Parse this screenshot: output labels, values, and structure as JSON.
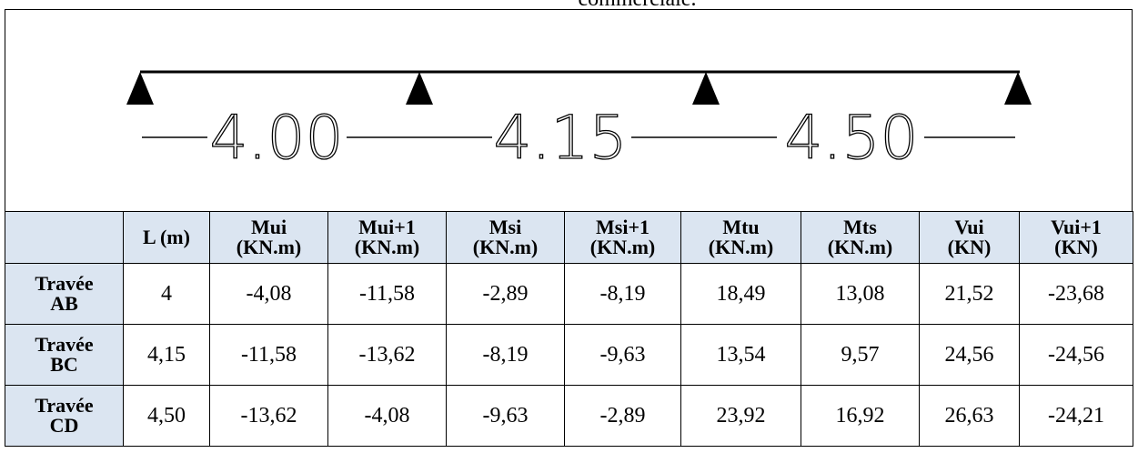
{
  "caption": "commerciale.",
  "diagram": {
    "spans": [
      "4.00",
      "4.15",
      "4.50"
    ]
  },
  "table": {
    "header": [
      [
        ""
      ],
      [
        "L (m)"
      ],
      [
        "Mui",
        "(KN.m)"
      ],
      [
        "Mui+1",
        "(KN.m)"
      ],
      [
        "Msi",
        "(KN.m)"
      ],
      [
        "Msi+1",
        "(KN.m)"
      ],
      [
        "Mtu",
        "(KN.m)"
      ],
      [
        "Mts",
        "(KN.m)"
      ],
      [
        "Vui",
        "(KN)"
      ],
      [
        "Vui+1",
        "(KN)"
      ]
    ],
    "rows": [
      [
        [
          "Travée",
          "AB"
        ],
        "4",
        "-4,08",
        "-11,58",
        "-2,89",
        "-8,19",
        "18,49",
        "13,08",
        "21,52",
        "-23,68"
      ],
      [
        [
          "Travée",
          "BC"
        ],
        "4,15",
        "-11,58",
        "-13,62",
        "-8,19",
        "-9,63",
        "13,54",
        "9,57",
        "24,56",
        "-24,56"
      ],
      [
        [
          "Travée",
          "CD"
        ],
        "4,50",
        "-13,62",
        "-4,08",
        "-9,63",
        "-2,89",
        "23,92",
        "16,92",
        "26,63",
        "-24,21"
      ]
    ]
  }
}
